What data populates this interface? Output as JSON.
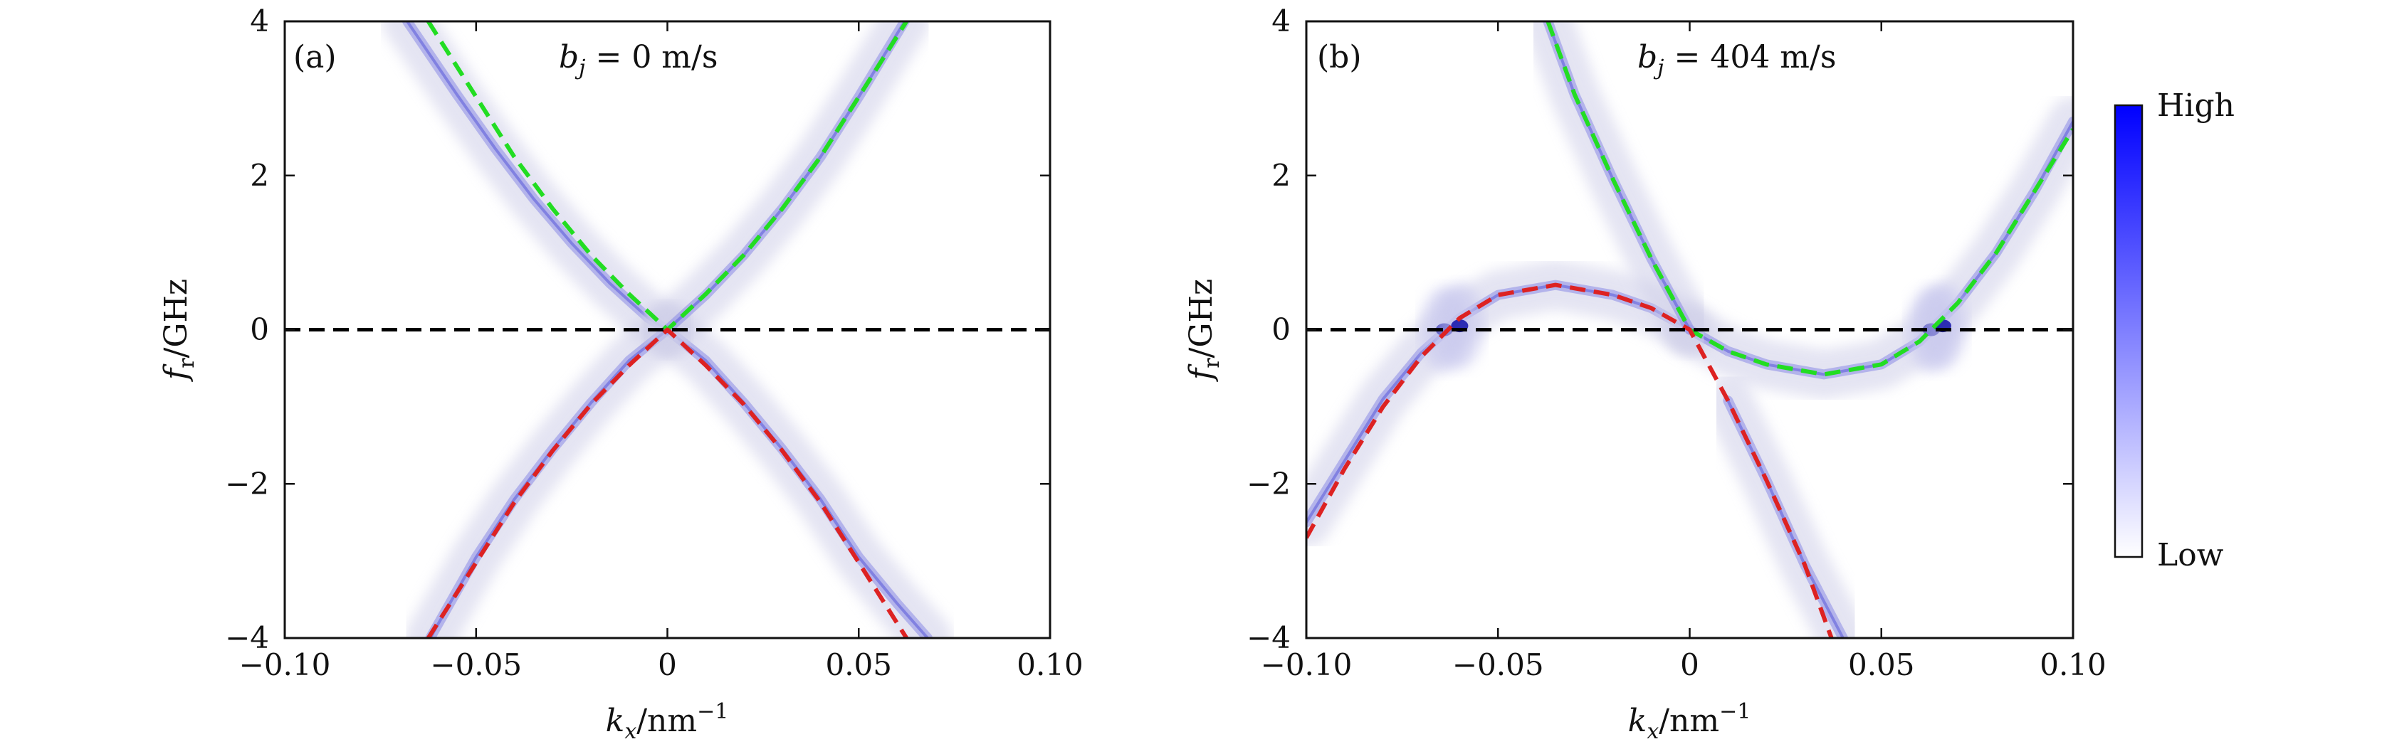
{
  "chart_data": [
    {
      "type": "line",
      "panel_label": "(a)",
      "annotation": "b_j = 0 m/s",
      "annotation_parts": {
        "b": "b",
        "j": "j",
        "rest": " = 0 m/s"
      },
      "xlabel_parts": {
        "k": "k",
        "sub": "x",
        "unit": "/nm",
        "sup": "−1"
      },
      "ylabel_parts": {
        "f": "f",
        "sub": "r",
        "unit": "/GHz"
      },
      "xlim": [
        -0.1,
        0.1
      ],
      "ylim": [
        -4,
        4
      ],
      "xticks": [
        -0.1,
        -0.05,
        0,
        0.05,
        0.1
      ],
      "xtick_labels": [
        "−0.10",
        "−0.05",
        "0",
        "0.05",
        "0.10"
      ],
      "yticks": [
        -4,
        -2,
        0,
        2,
        4
      ],
      "ytick_labels": [
        "−4",
        "−2",
        "0",
        "2",
        "4"
      ],
      "series": [
        {
          "color": "#22dd22",
          "dash": true,
          "values": {
            "x": [
              -0.0625,
              -0.05,
              -0.04,
              -0.03,
              -0.02,
              -0.01,
              0,
              0.01,
              0.02,
              0.03,
              0.04,
              0.05,
              0.0625
            ],
            "y": [
              4.0,
              3.02,
              2.24,
              1.57,
              0.97,
              0.46,
              0.0,
              0.46,
              0.97,
              1.57,
              2.24,
              3.02,
              4.0
            ]
          }
        },
        {
          "color": "#dd2222",
          "dash": true,
          "values": {
            "x": [
              -0.0625,
              -0.05,
              -0.04,
              -0.03,
              -0.02,
              -0.01,
              0,
              0.01,
              0.02,
              0.03,
              0.04,
              0.05,
              0.0625
            ],
            "y": [
              -4.0,
              -3.02,
              -2.24,
              -1.57,
              -0.97,
              -0.46,
              0.0,
              -0.46,
              -0.97,
              -1.57,
              -2.24,
              -3.02,
              -4.0
            ]
          }
        },
        {
          "color": "#000000",
          "dash": true,
          "values": {
            "x": [
              -0.1,
              0.1
            ],
            "y": [
              0,
              0
            ]
          }
        }
      ],
      "intensity_bands": [
        {
          "x": [
            -0.068,
            -0.055,
            -0.045,
            -0.035,
            -0.025,
            -0.015,
            -0.005,
            0
          ],
          "y": [
            4.0,
            3.05,
            2.35,
            1.7,
            1.12,
            0.6,
            0.15,
            0.0
          ]
        },
        {
          "x": [
            0,
            0.01,
            0.02,
            0.03,
            0.04,
            0.05,
            0.06,
            0.068
          ],
          "y": [
            0.0,
            -0.4,
            -0.95,
            -1.55,
            -2.2,
            -2.95,
            -3.55,
            -4.0
          ]
        },
        {
          "x": [
            -0.062,
            -0.05,
            -0.04,
            -0.03,
            -0.02,
            -0.01,
            0
          ],
          "y": [
            -4.0,
            -2.95,
            -2.2,
            -1.55,
            -0.95,
            -0.4,
            0.0
          ]
        },
        {
          "x": [
            0,
            0.01,
            0.02,
            0.03,
            0.04,
            0.05,
            0.062
          ],
          "y": [
            0.0,
            0.45,
            0.97,
            1.57,
            2.24,
            3.02,
            4.0
          ]
        }
      ]
    },
    {
      "type": "line",
      "panel_label": "(b)",
      "annotation": "b_j = 404 m/s",
      "annotation_parts": {
        "b": "b",
        "j": "j",
        "rest": " = 404 m/s"
      },
      "xlabel_parts": {
        "k": "k",
        "sub": "x",
        "unit": "/nm",
        "sup": "−1"
      },
      "ylabel_parts": {
        "f": "f",
        "sub": "r",
        "unit": "/GHz"
      },
      "xlim": [
        -0.1,
        0.1
      ],
      "ylim": [
        -4,
        4
      ],
      "xticks": [
        -0.1,
        -0.05,
        0,
        0.05,
        0.1
      ],
      "xtick_labels": [
        "−0.10",
        "−0.05",
        "0",
        "0.05",
        "0.10"
      ],
      "yticks": [
        -4,
        -2,
        0,
        2,
        4
      ],
      "ytick_labels": [
        "−4",
        "−2",
        "0",
        "2",
        "4"
      ],
      "series": [
        {
          "color": "#22dd22",
          "dash": true,
          "values": {
            "x": [
              -0.037,
              -0.03,
              -0.02,
              -0.01,
              0,
              0.01,
              0.02,
              0.035,
              0.05,
              0.06,
              0.07,
              0.08,
              0.09,
              0.1
            ],
            "y": [
              4.0,
              3.05,
              1.95,
              0.92,
              0.0,
              -0.28,
              -0.45,
              -0.58,
              -0.45,
              -0.15,
              0.35,
              1.0,
              1.8,
              2.6
            ]
          }
        },
        {
          "color": "#dd2222",
          "dash": true,
          "values": {
            "x": [
              -0.1,
              -0.09,
              -0.08,
              -0.07,
              -0.06,
              -0.05,
              -0.035,
              -0.02,
              -0.01,
              0,
              0.01,
              0.02,
              0.03,
              0.037
            ],
            "y": [
              -2.7,
              -1.8,
              -1.0,
              -0.35,
              0.15,
              0.45,
              0.58,
              0.45,
              0.28,
              0.0,
              -0.92,
              -1.95,
              -3.05,
              -4.0
            ]
          }
        },
        {
          "color": "#000000",
          "dash": true,
          "values": {
            "x": [
              -0.1,
              0.1
            ],
            "y": [
              0,
              0
            ]
          }
        }
      ],
      "intensity_bands": [
        {
          "x": [
            -0.1,
            -0.09,
            -0.08,
            -0.07,
            -0.06,
            -0.05,
            -0.035,
            -0.02,
            -0.01,
            0
          ],
          "y": [
            -2.5,
            -1.7,
            -0.9,
            -0.3,
            0.15,
            0.45,
            0.58,
            0.45,
            0.28,
            0.0
          ]
        },
        {
          "x": [
            0,
            0.01,
            0.02,
            0.035,
            0.05,
            0.06,
            0.07,
            0.08,
            0.09,
            0.1
          ],
          "y": [
            0.0,
            -0.28,
            -0.45,
            -0.58,
            -0.45,
            -0.15,
            0.35,
            1.0,
            1.8,
            2.7
          ]
        },
        {
          "x": [
            -0.037,
            -0.03,
            -0.02,
            -0.01,
            0
          ],
          "y": [
            4.0,
            3.05,
            1.95,
            0.92,
            0.0
          ]
        },
        {
          "x": [
            0.01,
            0.02,
            0.03,
            0.04
          ],
          "y": [
            -0.92,
            -1.95,
            -3.05,
            -4.0
          ]
        }
      ],
      "hotspots": [
        {
          "x": -0.064,
          "y": 0.0
        },
        {
          "x": -0.06,
          "y": 0.05
        },
        {
          "x": 0.063,
          "y": 0.0
        },
        {
          "x": 0.066,
          "y": 0.05
        }
      ]
    }
  ],
  "colorbar": {
    "high_label": "High",
    "low_label": "Low",
    "high_color": "#0000ff",
    "low_color": "#ffffff"
  }
}
